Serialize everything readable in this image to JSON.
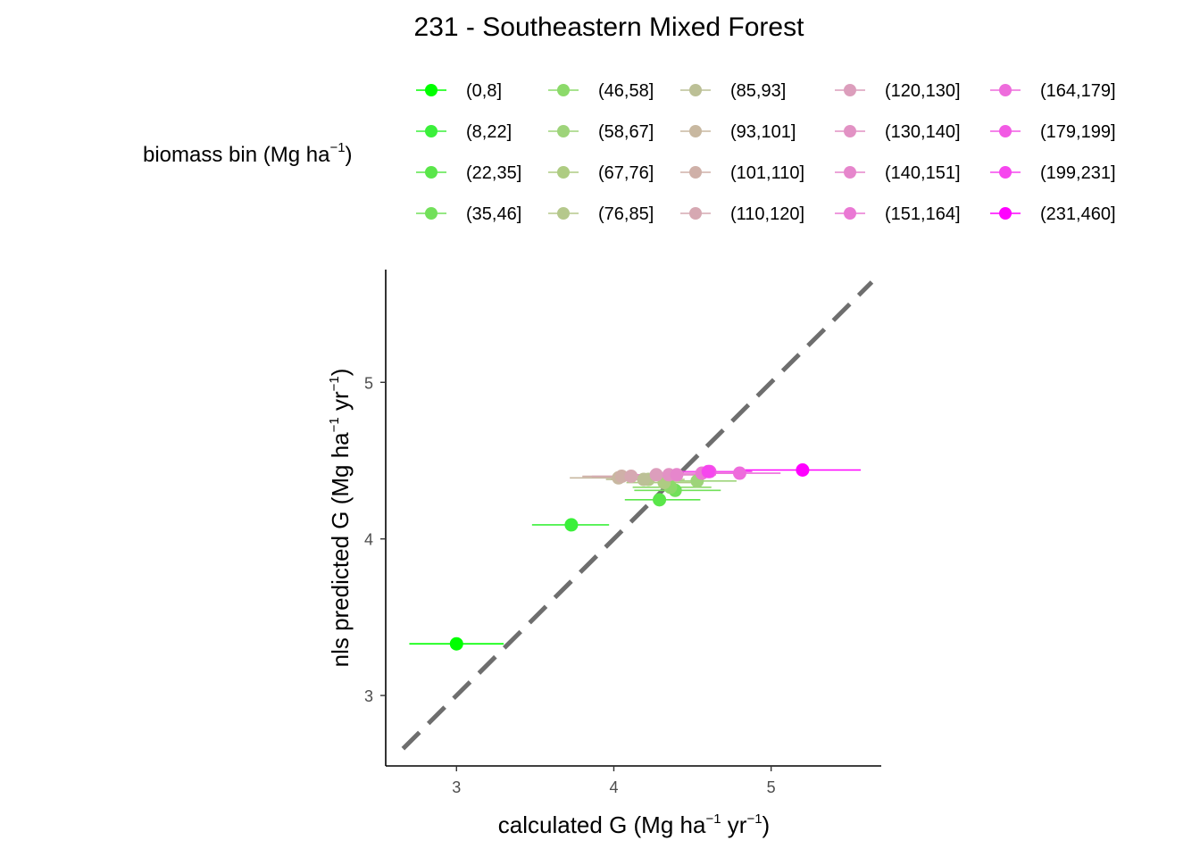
{
  "chart_data": {
    "type": "scatter",
    "title": "231 - Southeastern Mixed Forest",
    "xlabel": {
      "main": "calculated G (Mg ha",
      "sup1": "−1",
      "mid": " yr",
      "sup2": "−1",
      "end": ")"
    },
    "ylabel": {
      "main": "nls predicted G (Mg ha",
      "sup1": "−1",
      "mid": " yr",
      "sup2": "−1",
      "end": ")"
    },
    "xlim": [
      2.55,
      5.7
    ],
    "ylim": [
      2.55,
      5.72
    ],
    "x_ticks": [
      3,
      4,
      5
    ],
    "y_ticks": [
      3,
      4,
      5
    ],
    "x_tick_labels": [
      "3",
      "4",
      "5"
    ],
    "y_tick_labels": [
      "3",
      "4",
      "5"
    ],
    "reference_line": "1:1 dashed",
    "grid": false,
    "legend": {
      "title_main": "biomass bin (Mg ha",
      "title_sup": "−1",
      "title_end": ")",
      "placement": "top",
      "columns": 5
    },
    "series": [
      {
        "name": "(0,8]",
        "color": "#00FF00",
        "x": 3.0,
        "y": 3.33,
        "xerr": [
          2.7,
          3.3
        ]
      },
      {
        "name": "(8,22]",
        "color": "#3AF03A",
        "x": 3.73,
        "y": 4.09,
        "xerr": [
          3.48,
          3.97
        ]
      },
      {
        "name": "(22,35]",
        "color": "#5AE64A",
        "x": 4.29,
        "y": 4.25,
        "xerr": [
          4.07,
          4.55
        ]
      },
      {
        "name": "(35,46]",
        "color": "#72E05A",
        "x": 4.39,
        "y": 4.31,
        "xerr": [
          4.13,
          4.68
        ]
      },
      {
        "name": "(46,58]",
        "color": "#8CDA6A",
        "x": 4.36,
        "y": 4.33,
        "xerr": [
          4.12,
          4.62
        ]
      },
      {
        "name": "(58,67]",
        "color": "#9ED47A",
        "x": 4.53,
        "y": 4.37,
        "xerr": [
          4.28,
          4.78
        ]
      },
      {
        "name": "(67,76]",
        "color": "#AECC82",
        "x": 4.32,
        "y": 4.36,
        "xerr": [
          4.08,
          4.56
        ]
      },
      {
        "name": "(76,85]",
        "color": "#B5C88C",
        "x": 4.22,
        "y": 4.38,
        "xerr": [
          3.98,
          4.45
        ]
      },
      {
        "name": "(85,93]",
        "color": "#BCC096",
        "x": 4.19,
        "y": 4.38,
        "xerr": [
          3.95,
          4.43
        ]
      },
      {
        "name": "(93,101]",
        "color": "#C8B8A0",
        "x": 4.03,
        "y": 4.39,
        "xerr": [
          3.72,
          4.34
        ]
      },
      {
        "name": "(101,110]",
        "color": "#CFB0A8",
        "x": 4.05,
        "y": 4.4,
        "xerr": [
          3.8,
          4.3
        ]
      },
      {
        "name": "(110,120]",
        "color": "#D6A8B2",
        "x": 4.11,
        "y": 4.4,
        "xerr": [
          3.86,
          4.36
        ]
      },
      {
        "name": "(120,130]",
        "color": "#DC9EBC",
        "x": 4.27,
        "y": 4.41,
        "xerr": [
          4.02,
          4.52
        ]
      },
      {
        "name": "(130,140]",
        "color": "#E292C4",
        "x": 4.35,
        "y": 4.41,
        "xerr": [
          4.1,
          4.6
        ]
      },
      {
        "name": "(140,151]",
        "color": "#E686CC",
        "x": 4.4,
        "y": 4.41,
        "xerr": [
          4.15,
          4.65
        ]
      },
      {
        "name": "(151,164]",
        "color": "#EA78D4",
        "x": 4.56,
        "y": 4.42,
        "xerr": [
          4.3,
          4.82
        ]
      },
      {
        "name": "(164,179]",
        "color": "#EE6CDC",
        "x": 4.8,
        "y": 4.42,
        "xerr": [
          4.54,
          5.06
        ]
      },
      {
        "name": "(179,199]",
        "color": "#F25AE4",
        "x": 4.61,
        "y": 4.43,
        "xerr": [
          4.34,
          4.88
        ]
      },
      {
        "name": "(199,231]",
        "color": "#F646EE",
        "x": 4.6,
        "y": 4.43,
        "xerr": [
          4.33,
          4.87
        ]
      },
      {
        "name": "(231,460]",
        "color": "#FF00FF",
        "x": 5.2,
        "y": 4.44,
        "xerr": [
          4.83,
          5.57
        ]
      }
    ]
  }
}
